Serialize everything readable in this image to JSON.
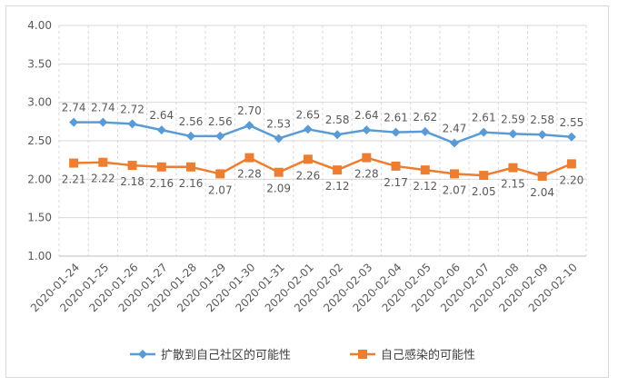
{
  "chart_data": {
    "type": "line",
    "title": "",
    "xlabel": "",
    "ylabel": "",
    "ylim": [
      1.0,
      4.0
    ],
    "yticks": [
      "1.00",
      "1.50",
      "2.00",
      "2.50",
      "3.00",
      "3.50",
      "4.00"
    ],
    "grid": "horizontal",
    "legend_position": "bottom",
    "categories": [
      "2020-01-24",
      "2020-01-25",
      "2020-01-26",
      "2020-01-27",
      "2020-01-28",
      "2020-01-29",
      "2020-01-30",
      "2020-01-31",
      "2020-02-01",
      "2020-02-02",
      "2020-02-03",
      "2020-02-04",
      "2020-02-05",
      "2020-02-06",
      "2020-02-07",
      "2020-02-08",
      "2020-02-09",
      "2020-02-10"
    ],
    "series": [
      {
        "name": "扩散到自己社区的可能性",
        "color": "#5b9bd5",
        "marker": "diamond",
        "label_position": "above",
        "values": [
          2.74,
          2.74,
          2.72,
          2.64,
          2.56,
          2.56,
          2.7,
          2.53,
          2.65,
          2.58,
          2.64,
          2.61,
          2.62,
          2.47,
          2.61,
          2.59,
          2.58,
          2.55
        ]
      },
      {
        "name": "自己感染的可能性",
        "color": "#ed7d31",
        "marker": "square",
        "label_position": "below",
        "values": [
          2.21,
          2.22,
          2.18,
          2.16,
          2.16,
          2.07,
          2.28,
          2.09,
          2.26,
          2.12,
          2.28,
          2.17,
          2.12,
          2.07,
          2.05,
          2.15,
          2.04,
          2.2
        ]
      }
    ]
  }
}
